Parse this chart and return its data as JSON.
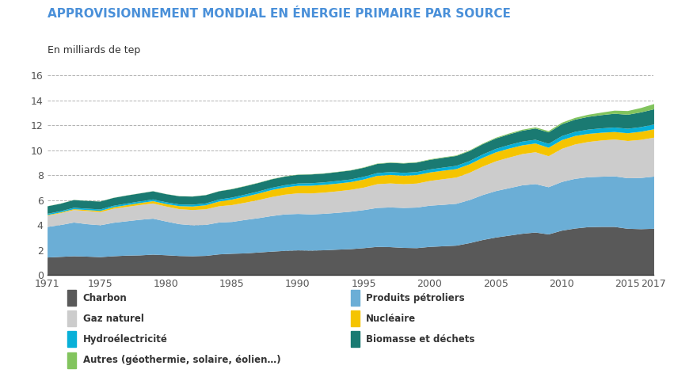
{
  "title": "APPROVISIONNEMENT MONDIAL EN ÉNERGIE PRIMAIRE PAR SOURCE",
  "subtitle": "En milliards de tep",
  "title_color": "#4a90d9",
  "years": [
    1971,
    1972,
    1973,
    1974,
    1975,
    1976,
    1977,
    1978,
    1979,
    1980,
    1981,
    1982,
    1983,
    1984,
    1985,
    1986,
    1987,
    1988,
    1989,
    1990,
    1991,
    1992,
    1993,
    1994,
    1995,
    1996,
    1997,
    1998,
    1999,
    2000,
    2001,
    2002,
    2003,
    2004,
    2005,
    2006,
    2007,
    2008,
    2009,
    2010,
    2011,
    2012,
    2013,
    2014,
    2015,
    2016,
    2017
  ],
  "charbon": [
    1.45,
    1.5,
    1.55,
    1.52,
    1.48,
    1.55,
    1.6,
    1.62,
    1.68,
    1.63,
    1.57,
    1.55,
    1.58,
    1.7,
    1.75,
    1.78,
    1.85,
    1.92,
    1.98,
    2.02,
    2.0,
    2.03,
    2.08,
    2.12,
    2.2,
    2.3,
    2.28,
    2.22,
    2.2,
    2.3,
    2.35,
    2.4,
    2.6,
    2.85,
    3.05,
    3.2,
    3.35,
    3.45,
    3.3,
    3.6,
    3.77,
    3.88,
    3.9,
    3.9,
    3.75,
    3.72,
    3.75
  ],
  "prod_petroliers": [
    2.45,
    2.55,
    2.7,
    2.6,
    2.55,
    2.68,
    2.75,
    2.85,
    2.88,
    2.7,
    2.55,
    2.48,
    2.48,
    2.55,
    2.55,
    2.68,
    2.75,
    2.85,
    2.92,
    2.92,
    2.9,
    2.92,
    2.95,
    3.0,
    3.05,
    3.12,
    3.18,
    3.2,
    3.25,
    3.3,
    3.32,
    3.35,
    3.45,
    3.6,
    3.72,
    3.8,
    3.88,
    3.88,
    3.78,
    3.9,
    3.98,
    4.0,
    4.02,
    4.05,
    4.05,
    4.1,
    4.18
  ],
  "gaz_naturel": [
    0.9,
    0.95,
    1.0,
    1.05,
    1.05,
    1.12,
    1.15,
    1.18,
    1.22,
    1.2,
    1.2,
    1.22,
    1.25,
    1.3,
    1.35,
    1.38,
    1.45,
    1.52,
    1.58,
    1.65,
    1.68,
    1.7,
    1.72,
    1.75,
    1.8,
    1.9,
    1.92,
    1.9,
    1.92,
    1.98,
    2.05,
    2.1,
    2.18,
    2.28,
    2.38,
    2.45,
    2.5,
    2.55,
    2.48,
    2.65,
    2.75,
    2.82,
    2.9,
    2.95,
    2.98,
    3.05,
    3.12
  ],
  "nucleaire": [
    0.05,
    0.06,
    0.07,
    0.08,
    0.1,
    0.12,
    0.14,
    0.16,
    0.18,
    0.2,
    0.24,
    0.28,
    0.32,
    0.38,
    0.44,
    0.48,
    0.52,
    0.56,
    0.58,
    0.6,
    0.62,
    0.62,
    0.62,
    0.62,
    0.65,
    0.67,
    0.68,
    0.68,
    0.68,
    0.68,
    0.68,
    0.68,
    0.68,
    0.7,
    0.72,
    0.72,
    0.7,
    0.7,
    0.68,
    0.7,
    0.68,
    0.65,
    0.62,
    0.6,
    0.62,
    0.65,
    0.67
  ],
  "hydroelectricite": [
    0.1,
    0.1,
    0.11,
    0.11,
    0.12,
    0.12,
    0.13,
    0.13,
    0.14,
    0.14,
    0.14,
    0.15,
    0.15,
    0.16,
    0.16,
    0.17,
    0.17,
    0.18,
    0.18,
    0.19,
    0.2,
    0.2,
    0.21,
    0.21,
    0.22,
    0.22,
    0.23,
    0.23,
    0.24,
    0.24,
    0.25,
    0.26,
    0.26,
    0.27,
    0.28,
    0.29,
    0.3,
    0.3,
    0.31,
    0.32,
    0.33,
    0.34,
    0.35,
    0.36,
    0.36,
    0.37,
    0.38
  ],
  "biomasse": [
    0.6,
    0.6,
    0.62,
    0.62,
    0.63,
    0.63,
    0.64,
    0.64,
    0.65,
    0.65,
    0.65,
    0.65,
    0.66,
    0.66,
    0.67,
    0.67,
    0.68,
    0.68,
    0.69,
    0.69,
    0.7,
    0.7,
    0.71,
    0.72,
    0.72,
    0.73,
    0.74,
    0.75,
    0.76,
    0.77,
    0.78,
    0.79,
    0.8,
    0.82,
    0.83,
    0.85,
    0.87,
    0.9,
    0.92,
    0.95,
    0.98,
    1.02,
    1.06,
    1.1,
    1.12,
    1.18,
    1.22
  ],
  "autres": [
    0.01,
    0.01,
    0.01,
    0.01,
    0.01,
    0.01,
    0.01,
    0.01,
    0.01,
    0.01,
    0.01,
    0.01,
    0.01,
    0.01,
    0.02,
    0.02,
    0.02,
    0.02,
    0.02,
    0.02,
    0.02,
    0.02,
    0.02,
    0.02,
    0.03,
    0.03,
    0.03,
    0.03,
    0.03,
    0.04,
    0.04,
    0.04,
    0.05,
    0.05,
    0.06,
    0.07,
    0.08,
    0.09,
    0.1,
    0.12,
    0.14,
    0.17,
    0.2,
    0.25,
    0.3,
    0.35,
    0.42
  ],
  "colors": {
    "charbon": "#595959",
    "prod_petroliers": "#6baed6",
    "gaz_naturel": "#cccccc",
    "nucleaire": "#f5c400",
    "hydroelectricite": "#08b0d8",
    "biomasse": "#1a7a72",
    "autres": "#82c45e"
  },
  "ylim": [
    0,
    16
  ],
  "yticks": [
    0,
    2,
    4,
    6,
    8,
    10,
    12,
    14,
    16
  ],
  "xticks": [
    1971,
    1975,
    1980,
    1985,
    1990,
    1995,
    2000,
    2005,
    2010,
    2015,
    2017
  ],
  "legend_left": [
    {
      "label": "Charbon",
      "color": "#595959"
    },
    {
      "label": "Gaz naturel",
      "color": "#cccccc"
    },
    {
      "label": "Hydroélectricité",
      "color": "#08b0d8"
    },
    {
      "label": "Autres (géothermie, solaire, éolien…)",
      "color": "#82c45e"
    }
  ],
  "legend_right": [
    {
      "label": "Produits pétroliers",
      "color": "#6baed6"
    },
    {
      "label": "Nucléaire",
      "color": "#f5c400"
    },
    {
      "label": "Biomasse et déchets",
      "color": "#1a7a72"
    }
  ]
}
